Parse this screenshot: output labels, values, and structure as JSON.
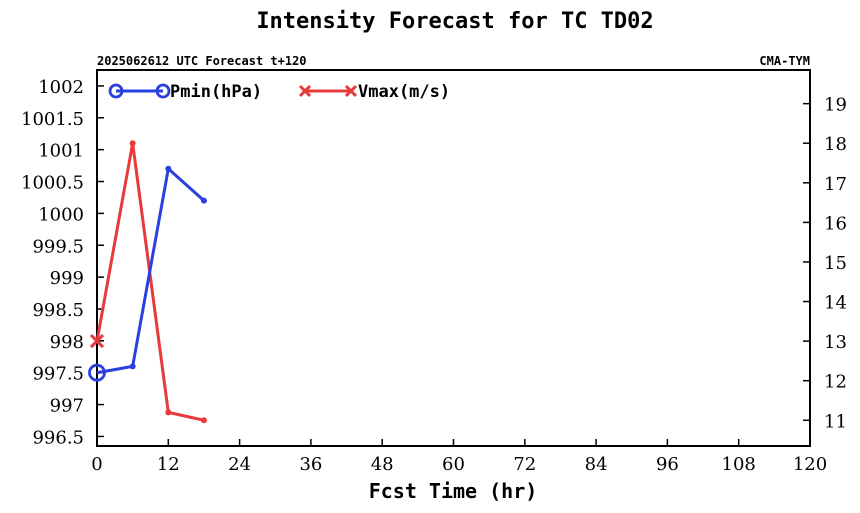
{
  "chart_data": {
    "type": "line",
    "title": "Intensity Forecast for TC TD02",
    "subtitle_left": "2025062612 UTC Forecast t+120",
    "subtitle_right": "CMA-TYM",
    "xlabel": "Fcst Time (hr)",
    "xlim": [
      0,
      120
    ],
    "x_ticks": [
      0,
      12,
      24,
      36,
      48,
      60,
      72,
      84,
      96,
      108,
      120
    ],
    "y_left_lim": [
      996.35,
      1002.25
    ],
    "y_left_ticks": [
      "1002",
      "1001.5",
      "1001",
      "1000.5",
      "1000",
      "999.5",
      "999",
      "998.5",
      "998",
      "997.5",
      "997",
      "996.5"
    ],
    "y_right_lim": [
      10.35,
      19.85
    ],
    "y_right_ticks": [
      "19",
      "18",
      "17",
      "16",
      "15",
      "14",
      "13",
      "12",
      "11"
    ],
    "grid": false,
    "legend_position": "top-left",
    "series": [
      {
        "name": "Pmin(hPa)",
        "axis": "left",
        "color": "#2a3fe0",
        "marker": "circle",
        "x": [
          0,
          6,
          12,
          18
        ],
        "y": [
          997.5,
          997.6,
          1000.7,
          1000.2
        ]
      },
      {
        "name": "Vmax(m/s)",
        "axis": "right",
        "color": "#e83a3a",
        "marker": "x",
        "x": [
          0,
          6,
          12,
          18
        ],
        "y": [
          13.0,
          18.0,
          11.2,
          11.0
        ]
      }
    ]
  }
}
